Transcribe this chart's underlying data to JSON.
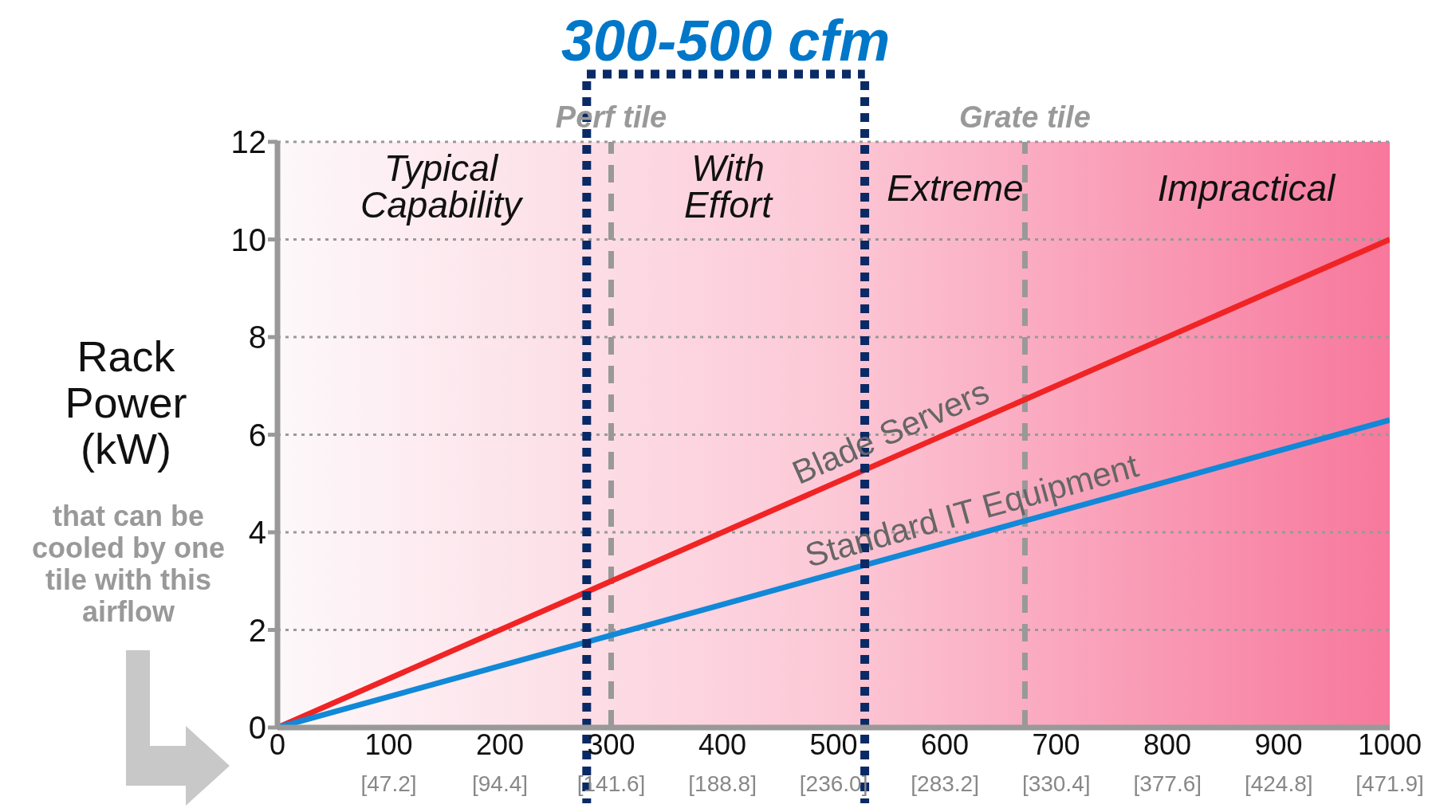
{
  "chart_data": {
    "type": "line",
    "ylabel": "Rack Power (kW)",
    "x": [
      0,
      1000
    ],
    "xlim": [
      0,
      1000
    ],
    "xticks": [
      0,
      100,
      200,
      300,
      400,
      500,
      600,
      700,
      800,
      900,
      1000
    ],
    "x2lim": [
      0,
      471.9
    ],
    "x2ticks": [
      {
        "value": 47.2,
        "label": "[47.2]"
      },
      {
        "value": 94.4,
        "label": "[94.4]"
      },
      {
        "value": 141.6,
        "label": "[141.6]"
      },
      {
        "value": 188.8,
        "label": "[188.8]"
      },
      {
        "value": 236,
        "label": "[236.0]"
      },
      {
        "value": 283.2,
        "label": "[283.2]"
      },
      {
        "value": 330.4,
        "label": "[330.4]"
      },
      {
        "value": 377.6,
        "label": "[377.6]"
      },
      {
        "value": 424.8,
        "label": "[424.8]"
      },
      {
        "value": 471.9,
        "label": "[471.9]"
      }
    ],
    "ylim": [
      0,
      12
    ],
    "yticks": [
      0,
      2,
      4,
      6,
      8,
      10,
      12
    ],
    "series": [
      {
        "name": "Blade Servers",
        "color": "#f02424",
        "values": [
          0,
          10
        ]
      },
      {
        "name": "Standard IT Equipment",
        "color": "#1188d8",
        "values": [
          0,
          6.3
        ]
      }
    ],
    "ref_lines": [
      {
        "axis": "x",
        "value": 278,
        "color": "#0a2a66",
        "line_style": "dotted"
      },
      {
        "axis": "x",
        "value": 528,
        "color": "#0a2a66",
        "line_style": "dotted"
      },
      {
        "axis": "x",
        "value": 300,
        "label": "Perf tile",
        "color": "#999999",
        "line_style": "dashed"
      },
      {
        "axis": "x",
        "value": 672,
        "label": "Grate tile",
        "color": "#999999",
        "line_style": "dashed"
      }
    ],
    "annotations": [
      "Typical Capability",
      "With Effort",
      "Extreme",
      "Impractical",
      "300-500 cfm",
      "that can be cooled by one tile with this airflow"
    ],
    "grid": "y",
    "marker": "none",
    "line_style": "solid"
  }
}
